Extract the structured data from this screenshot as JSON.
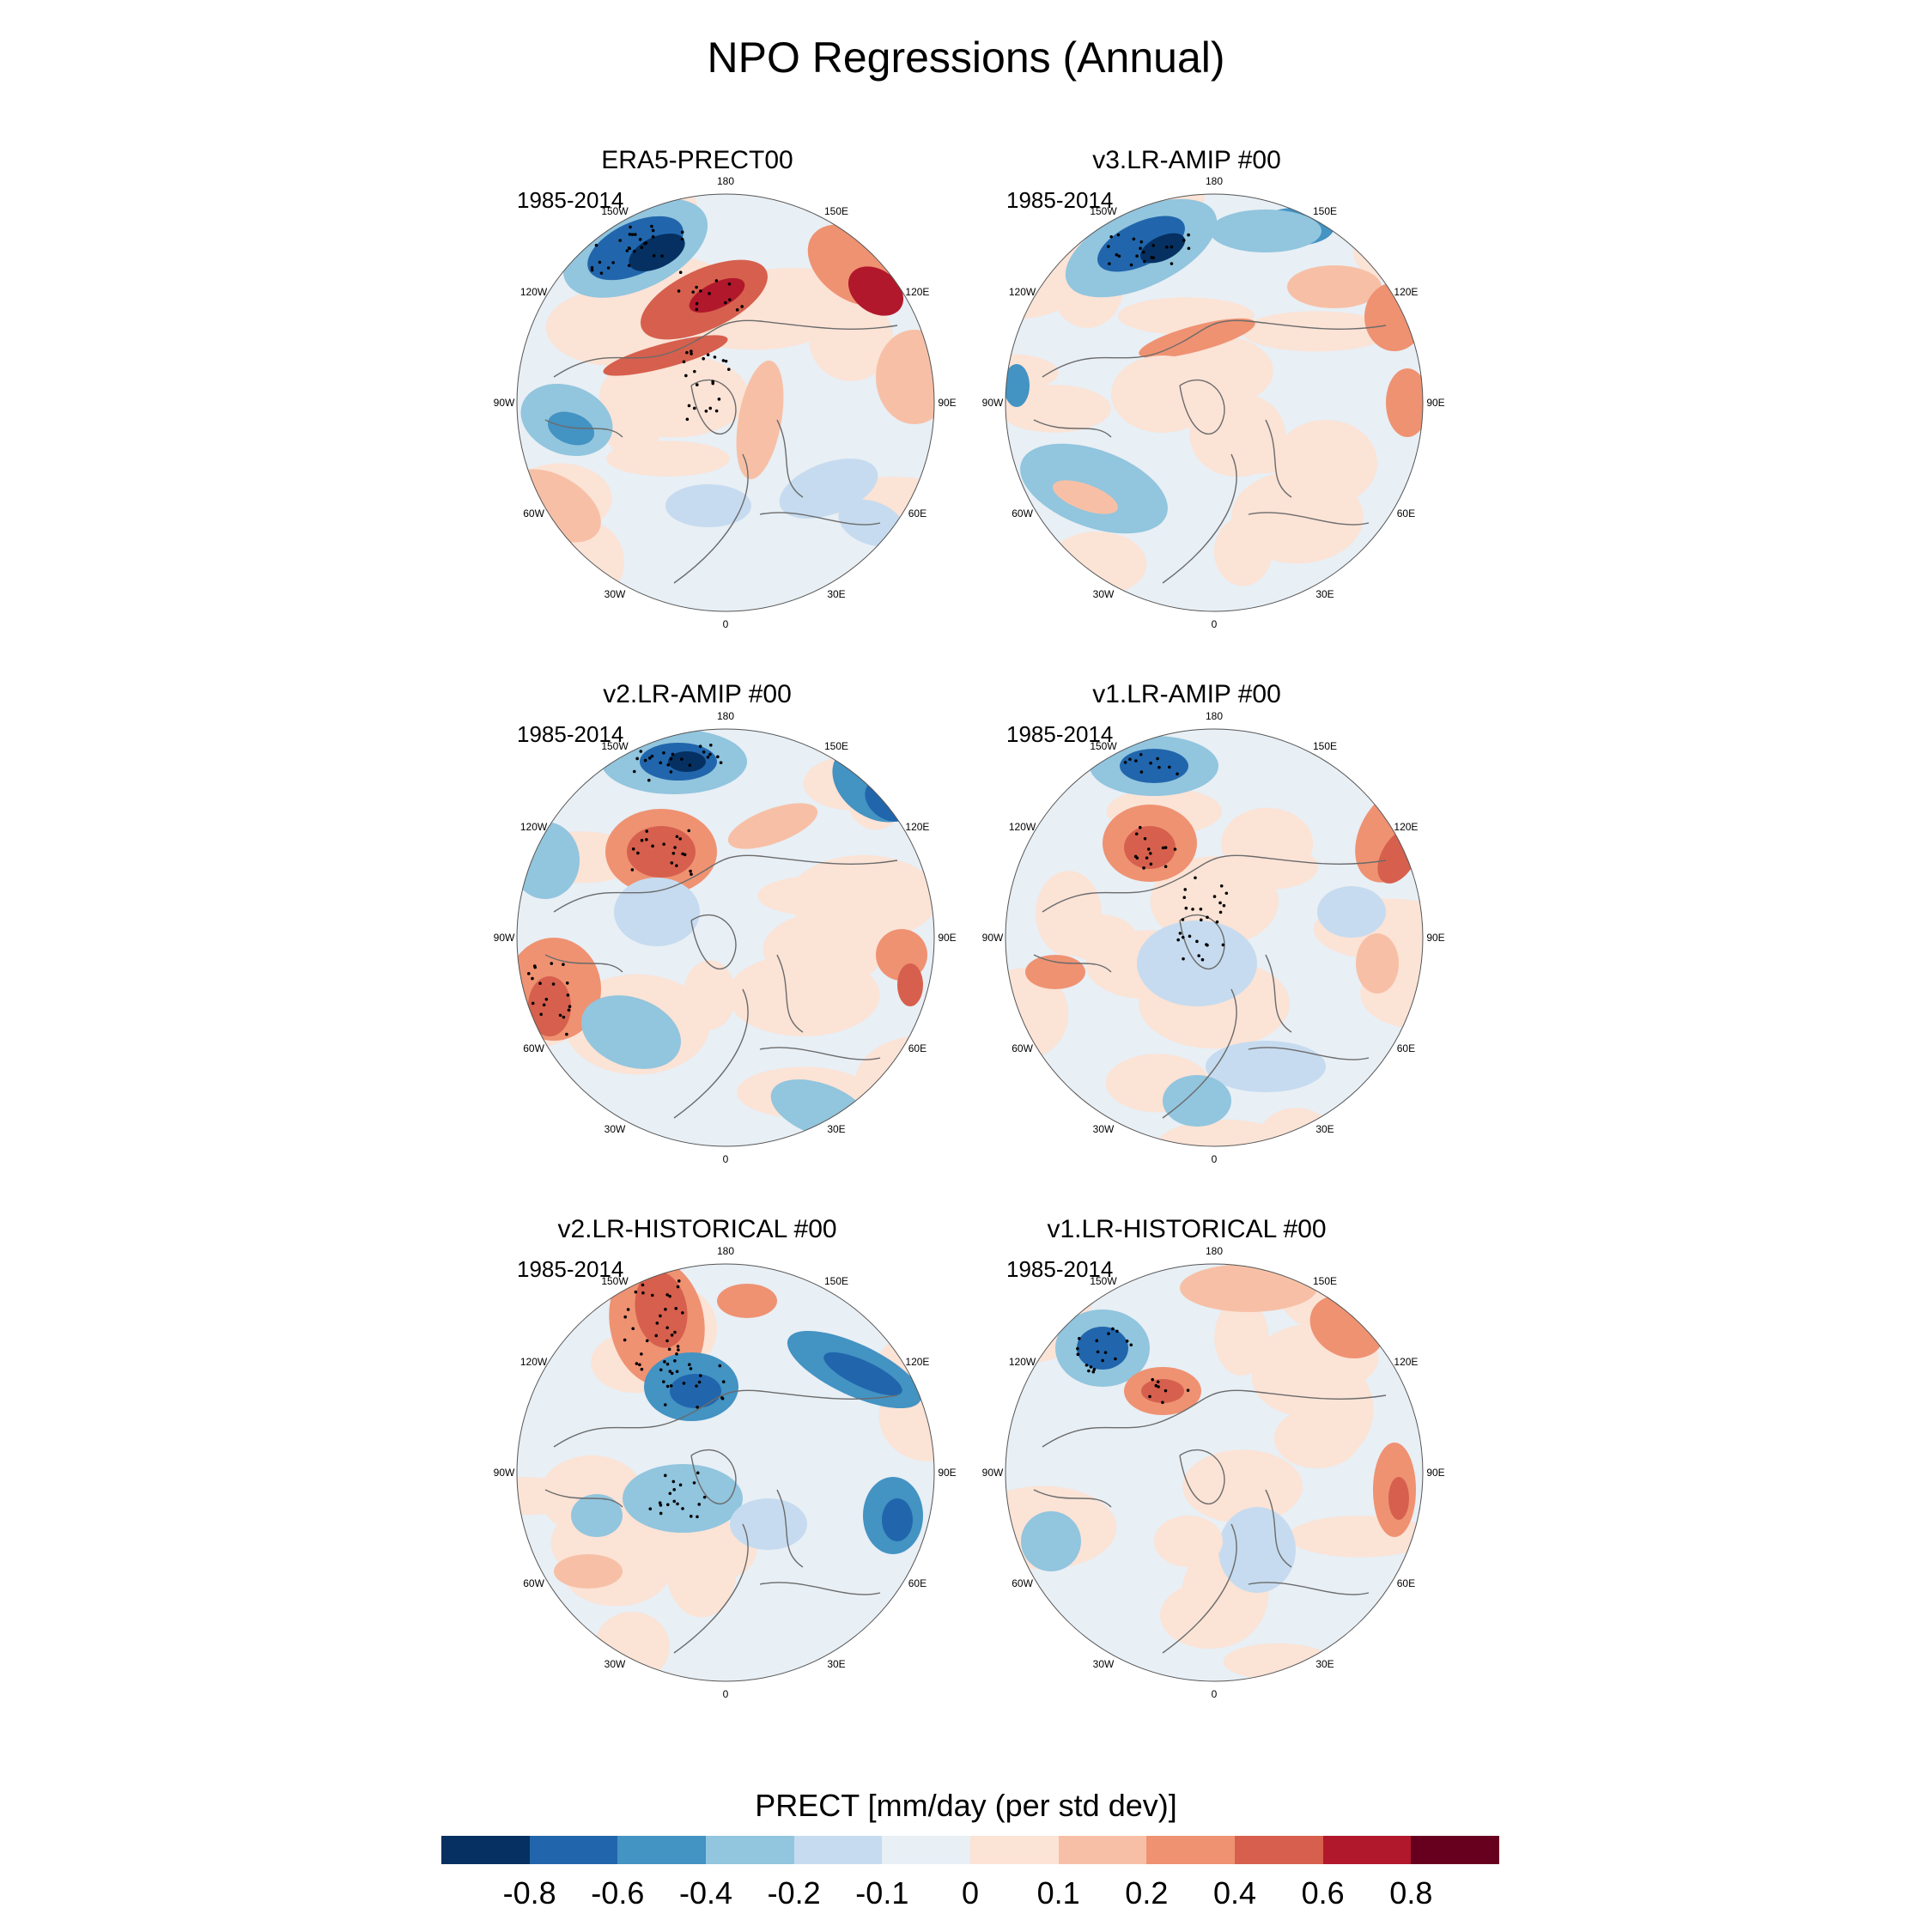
{
  "title": "NPO Regressions (Annual)",
  "panels": [
    {
      "id": "era5",
      "title": "ERA5-PRECT00",
      "period": "1985-2014"
    },
    {
      "id": "v3amip",
      "title": "v3.LR-AMIP  #00",
      "period": "1985-2014"
    },
    {
      "id": "v2amip",
      "title": "v2.LR-AMIP  #00",
      "period": "1985-2014"
    },
    {
      "id": "v1amip",
      "title": "v1.LR-AMIP  #00",
      "period": "1985-2014"
    },
    {
      "id": "v2hist",
      "title": "v2.LR-HISTORICAL  #00",
      "period": "1985-2014"
    },
    {
      "id": "v1hist",
      "title": "v1.LR-HISTORICAL  #00",
      "period": "1985-2014"
    }
  ],
  "longitude_labels": [
    "180",
    "150E",
    "120E",
    "90E",
    "60E",
    "30E",
    "0",
    "30W",
    "60W",
    "90W",
    "120W",
    "150W"
  ],
  "colorbar": {
    "title": "PRECT [mm/day (per std dev)]",
    "levels": [
      "-0.8",
      "-0.6",
      "-0.4",
      "-0.2",
      "-0.1",
      "0",
      "0.1",
      "0.2",
      "0.4",
      "0.6",
      "0.8"
    ],
    "colors": [
      "#053061",
      "#2166ac",
      "#4393c3",
      "#92c5de",
      "#c6dbef",
      "#e8eff5",
      "#fbe3d6",
      "#f7c0a6",
      "#ef9272",
      "#d6604d",
      "#b2182b",
      "#67001f"
    ]
  }
}
